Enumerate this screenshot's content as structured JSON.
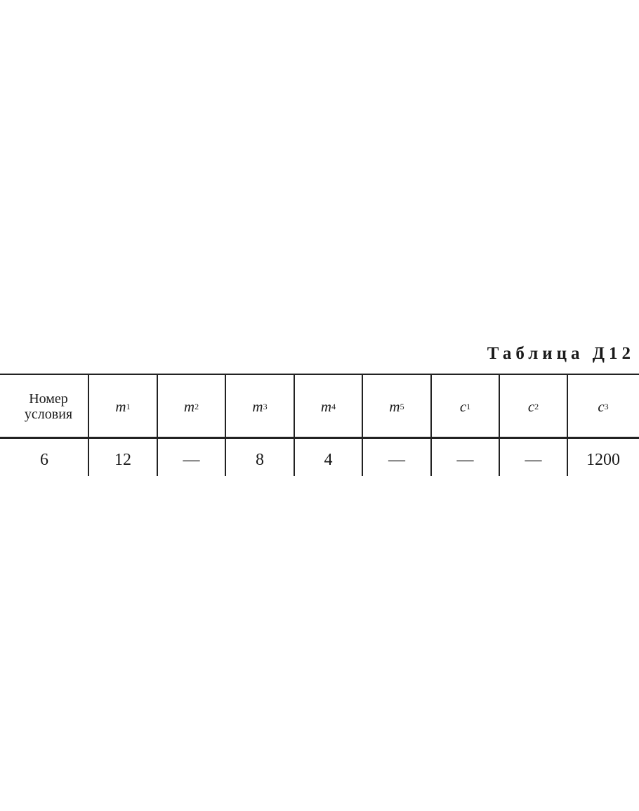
{
  "title": "Таблица Д12",
  "table": {
    "columns": [
      {
        "label": "Номер условия"
      },
      {
        "base": "m",
        "sub": "1"
      },
      {
        "base": "m",
        "sub": "2"
      },
      {
        "base": "m",
        "sub": "3"
      },
      {
        "base": "m",
        "sub": "4"
      },
      {
        "base": "m",
        "sub": "5"
      },
      {
        "base": "c",
        "sub": "1"
      },
      {
        "base": "c",
        "sub": "2"
      },
      {
        "base": "c",
        "sub": "3"
      }
    ],
    "rows": [
      [
        "6",
        "12",
        "—",
        "8",
        "4",
        "—",
        "—",
        "—",
        "1200"
      ]
    ]
  }
}
